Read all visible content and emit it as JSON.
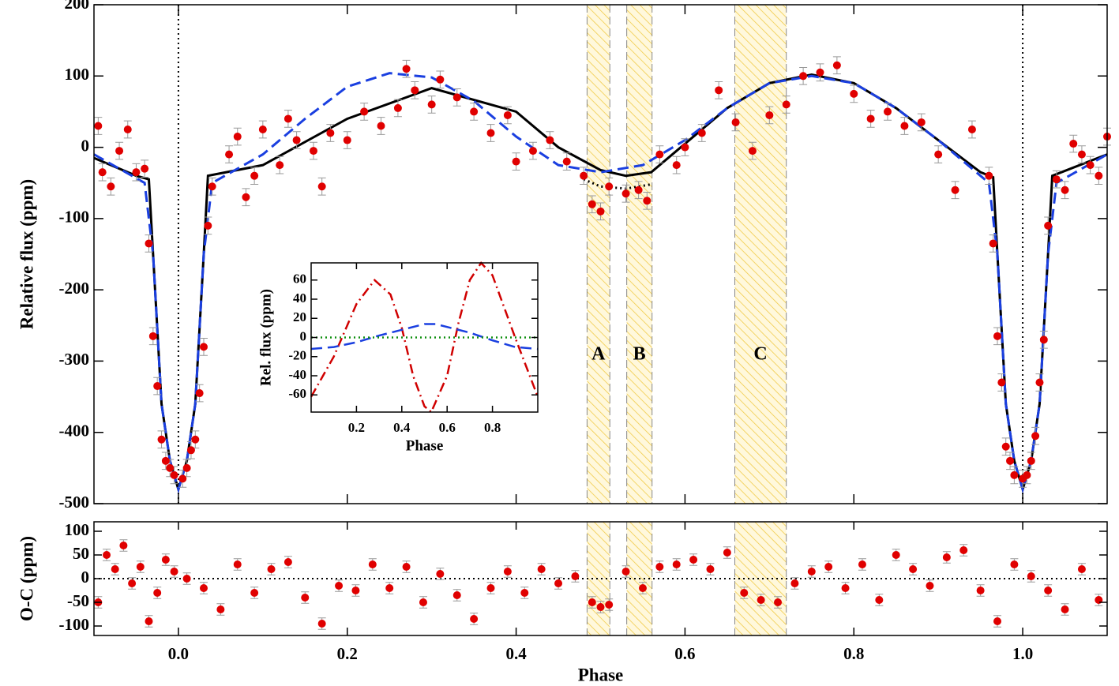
{
  "chart_data": [
    {
      "type": "scatter",
      "ylabel": "Relative flux (ppm)",
      "xlim": [
        -0.1,
        1.1
      ],
      "ylim": [
        -500,
        200
      ],
      "yticks": [
        -500,
        -400,
        -300,
        -200,
        -100,
        0,
        100,
        200
      ],
      "vlines": [
        0,
        1
      ],
      "regions": [
        {
          "label": "A",
          "x": [
            0.484,
            0.511
          ]
        },
        {
          "label": "B",
          "x": [
            0.531,
            0.561
          ]
        },
        {
          "label": "C",
          "x": [
            0.659,
            0.72
          ]
        }
      ],
      "points": {
        "color": "#e00000",
        "yerr": 12,
        "x": [
          -0.095,
          -0.09,
          -0.08,
          -0.07,
          -0.06,
          -0.05,
          -0.04,
          -0.035,
          -0.03,
          -0.025,
          -0.02,
          -0.015,
          -0.01,
          -0.005,
          0.005,
          0.01,
          0.015,
          0.02,
          0.025,
          0.03,
          0.035,
          0.04,
          0.06,
          0.07,
          0.08,
          0.09,
          0.1,
          0.12,
          0.13,
          0.14,
          0.16,
          0.17,
          0.18,
          0.2,
          0.22,
          0.24,
          0.26,
          0.27,
          0.28,
          0.3,
          0.31,
          0.33,
          0.35,
          0.37,
          0.39,
          0.4,
          0.42,
          0.44,
          0.46,
          0.48,
          0.49,
          0.5,
          0.51,
          0.53,
          0.545,
          0.555,
          0.57,
          0.59,
          0.6,
          0.62,
          0.64,
          0.66,
          0.68,
          0.7,
          0.72,
          0.74,
          0.76,
          0.78,
          0.8,
          0.82,
          0.84,
          0.86,
          0.88,
          0.9,
          0.92,
          0.94,
          0.96,
          0.965,
          0.97,
          0.975,
          0.98,
          0.985,
          0.99,
          1.0,
          1.005,
          1.01,
          1.015,
          1.02,
          1.025,
          1.03,
          1.04,
          1.05,
          1.06,
          1.07,
          1.08,
          1.09,
          1.1
        ],
        "values": [
          30,
          -35,
          -55,
          -5,
          25,
          -35,
          -30,
          -135,
          -265,
          -335,
          -410,
          -440,
          -450,
          -460,
          -465,
          -450,
          -425,
          -410,
          -345,
          -280,
          -110,
          -55,
          -10,
          15,
          -70,
          -40,
          25,
          -25,
          40,
          10,
          -5,
          -55,
          20,
          10,
          50,
          30,
          55,
          110,
          80,
          60,
          95,
          70,
          50,
          20,
          45,
          -20,
          -5,
          10,
          -20,
          -40,
          -80,
          -90,
          -55,
          -65,
          -60,
          -75,
          -10,
          -25,
          0,
          20,
          80,
          35,
          -5,
          45,
          60,
          100,
          105,
          115,
          75,
          40,
          50,
          30,
          35,
          -10,
          -60,
          25,
          -40,
          -135,
          -265,
          -330,
          -420,
          -440,
          -460,
          -465,
          -460,
          -440,
          -405,
          -330,
          -270,
          -110,
          -45,
          -60,
          5,
          -10,
          -25,
          -40,
          15
        ]
      },
      "series": [
        {
          "color": "#000000",
          "dash": "solid",
          "x": [
            -0.1,
            -0.05,
            -0.035,
            -0.03,
            -0.02,
            -0.01,
            0,
            0.01,
            0.02,
            0.03,
            0.035,
            0.1,
            0.2,
            0.3,
            0.4,
            0.45,
            0.5,
            0.53,
            0.56,
            0.6,
            0.65,
            0.7,
            0.75,
            0.8,
            0.85,
            0.9,
            0.95,
            0.965,
            0.97,
            0.98,
            0.99,
            1.0,
            1.01,
            1.02,
            1.03,
            1.035,
            1.1
          ],
          "values": [
            -15,
            -40,
            -45,
            -150,
            -360,
            -440,
            -480,
            -440,
            -360,
            -150,
            -40,
            -25,
            40,
            83,
            50,
            0,
            -32,
            -40,
            -35,
            5,
            55,
            90,
            102,
            90,
            55,
            10,
            -35,
            -42,
            -150,
            -360,
            -440,
            -480,
            -440,
            -360,
            -150,
            -40,
            -10
          ]
        },
        {
          "color": "#1a3fe0",
          "dash": "dashed",
          "x": [
            -0.1,
            -0.04,
            -0.03,
            -0.02,
            -0.01,
            0,
            0.01,
            0.02,
            0.03,
            0.04,
            0.1,
            0.15,
            0.2,
            0.25,
            0.3,
            0.35,
            0.4,
            0.45,
            0.5,
            0.55,
            0.6,
            0.65,
            0.7,
            0.75,
            0.8,
            0.85,
            0.9,
            0.95,
            0.96,
            0.97,
            0.98,
            0.99,
            1.0,
            1.01,
            1.02,
            1.03,
            1.04,
            1.1
          ],
          "values": [
            -10,
            -50,
            -150,
            -360,
            -440,
            -480,
            -440,
            -360,
            -150,
            -50,
            -10,
            40,
            85,
            104,
            98,
            65,
            15,
            -25,
            -35,
            -25,
            10,
            55,
            90,
            100,
            90,
            55,
            10,
            -40,
            -50,
            -150,
            -360,
            -440,
            -480,
            -440,
            -360,
            -150,
            -50,
            -10
          ]
        },
        {
          "color": "#000000",
          "dash": "dotted",
          "x": [
            0.48,
            0.5,
            0.53,
            0.56
          ],
          "values": [
            -45,
            -55,
            -58,
            -52
          ]
        }
      ]
    },
    {
      "type": "scatter",
      "ylabel": "O-C (ppm)",
      "xlabel": "Phase",
      "xlim": [
        -0.1,
        1.1
      ],
      "ylim": [
        -120,
        120
      ],
      "xticks": [
        {
          "value": 0,
          "label": "0.0"
        },
        0.2,
        0.4,
        0.6,
        0.8,
        {
          "value": 1,
          "label": "1.0"
        }
      ],
      "yticks": [
        -100,
        -50,
        0,
        50,
        100
      ],
      "hline": 0,
      "points": {
        "color": "#e00000",
        "yerr": 12,
        "x": [
          -0.095,
          -0.085,
          -0.075,
          -0.065,
          -0.055,
          -0.045,
          -0.035,
          -0.025,
          -0.015,
          -0.005,
          0.01,
          0.03,
          0.05,
          0.07,
          0.09,
          0.11,
          0.13,
          0.15,
          0.17,
          0.19,
          0.21,
          0.23,
          0.25,
          0.27,
          0.29,
          0.31,
          0.33,
          0.35,
          0.37,
          0.39,
          0.41,
          0.43,
          0.45,
          0.47,
          0.49,
          0.5,
          0.51,
          0.53,
          0.55,
          0.57,
          0.59,
          0.61,
          0.63,
          0.65,
          0.67,
          0.69,
          0.71,
          0.73,
          0.75,
          0.77,
          0.79,
          0.81,
          0.83,
          0.85,
          0.87,
          0.89,
          0.91,
          0.93,
          0.95,
          0.97,
          0.99,
          1.01,
          1.03,
          1.05,
          1.07,
          1.09
        ],
        "values": [
          -50,
          50,
          20,
          70,
          -10,
          25,
          -90,
          -30,
          40,
          15,
          0,
          -20,
          -65,
          30,
          -30,
          20,
          35,
          -40,
          -95,
          -15,
          -25,
          30,
          -20,
          25,
          -50,
          10,
          -35,
          -85,
          -20,
          15,
          -30,
          20,
          -10,
          5,
          -50,
          -60,
          -55,
          15,
          -20,
          25,
          30,
          40,
          20,
          55,
          -30,
          -45,
          -50,
          -10,
          15,
          25,
          -20,
          30,
          -45,
          50,
          20,
          -15,
          45,
          60,
          -25,
          -90,
          30,
          5,
          -25,
          -65,
          20,
          -45
        ]
      },
      "series": []
    },
    {
      "type": "line",
      "ylabel": "Rel. flux (ppm)",
      "xlabel": "Phase",
      "xlim": [
        0,
        1
      ],
      "ylim": [
        -78,
        78
      ],
      "xticks": [
        0.2,
        0.4,
        0.6,
        0.8
      ],
      "yticks": [
        -60,
        -40,
        -20,
        0,
        20,
        40,
        60
      ],
      "series": [
        {
          "color": "#d00000",
          "dash": "dashdot",
          "x": [
            0,
            0.1,
            0.2,
            0.28,
            0.35,
            0.4,
            0.45,
            0.5,
            0.53,
            0.6,
            0.65,
            0.7,
            0.75,
            0.8,
            0.9,
            1.0
          ],
          "values": [
            -62,
            -20,
            35,
            60,
            45,
            10,
            -40,
            -72,
            -78,
            -40,
            15,
            60,
            78,
            65,
            0,
            -62
          ]
        },
        {
          "color": "#1a3fe0",
          "dash": "dashed",
          "x": [
            0,
            0.1,
            0.2,
            0.3,
            0.4,
            0.5,
            0.55,
            0.6,
            0.7,
            0.8,
            0.9,
            1.0
          ],
          "values": [
            -12,
            -10,
            -5,
            2,
            8,
            14,
            14,
            11,
            5,
            -3,
            -10,
            -12
          ]
        },
        {
          "color": "#109010",
          "dash": "dotted",
          "x": [
            0,
            1
          ],
          "values": [
            0,
            0
          ]
        }
      ]
    }
  ]
}
